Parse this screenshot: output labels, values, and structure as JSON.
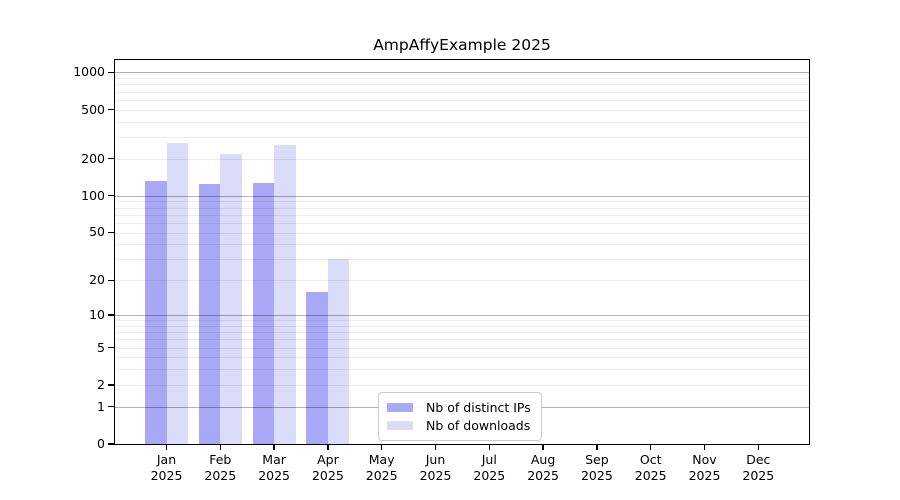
{
  "chart_data": {
    "type": "bar",
    "title": "AmpAffyExample 2025",
    "year_label": "2025",
    "categories": [
      "Jan",
      "Feb",
      "Mar",
      "Apr",
      "May",
      "Jun",
      "Jul",
      "Aug",
      "Sep",
      "Oct",
      "Nov",
      "Dec"
    ],
    "series": [
      {
        "name": "Nb of distinct IPs",
        "color": "#a8a8f6",
        "values": [
          132,
          125,
          126,
          16,
          0,
          0,
          0,
          0,
          0,
          0,
          0,
          0
        ]
      },
      {
        "name": "Nb of downloads",
        "color": "#dbdbfa",
        "values": [
          268,
          220,
          258,
          30,
          0,
          0,
          0,
          0,
          0,
          0,
          0,
          0
        ]
      }
    ],
    "y_axis": {
      "scale": "log1p",
      "ticks": [
        0,
        1,
        2,
        5,
        10,
        20,
        50,
        100,
        200,
        500,
        1000
      ],
      "ylim": [
        0,
        1255
      ]
    },
    "gridlines": {
      "major": [
        1,
        10,
        100,
        1000
      ],
      "minor": [
        2,
        3,
        4,
        5,
        6,
        7,
        8,
        9,
        20,
        30,
        40,
        50,
        60,
        70,
        80,
        90,
        200,
        300,
        400,
        500,
        600,
        700,
        800,
        900
      ]
    },
    "legend_position": "lower center",
    "grid": true
  }
}
